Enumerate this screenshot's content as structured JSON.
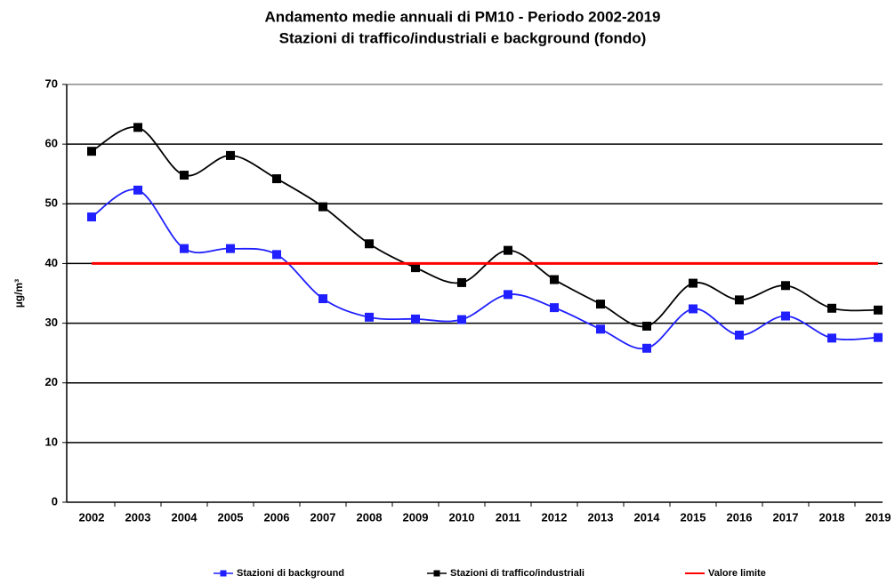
{
  "chart_data": {
    "type": "line",
    "title": "Andamento medie annuali di PM10 - Periodo 2002-2019",
    "subtitle": "Stazioni di traffico/industriali e background (fondo)",
    "y_label": "µg/m³",
    "categories": [
      "2002",
      "2003",
      "2004",
      "2005",
      "2006",
      "2007",
      "2008",
      "2009",
      "2010",
      "2011",
      "2012",
      "2013",
      "2014",
      "2015",
      "2016",
      "2017",
      "2018",
      "2019"
    ],
    "series": [
      {
        "name": "Stazioni di background",
        "color": "#1f1fff",
        "marker": true,
        "values": [
          47.8,
          52.3,
          42.5,
          42.5,
          41.5,
          34.1,
          31.0,
          30.7,
          30.6,
          34.8,
          32.6,
          29.0,
          25.8,
          32.4,
          28.0,
          31.2,
          27.5,
          27.6
        ]
      },
      {
        "name": "Stazioni di traffico/industriali",
        "color": "#000000",
        "marker": true,
        "values": [
          58.8,
          62.8,
          54.8,
          58.1,
          54.2,
          49.5,
          43.3,
          39.3,
          36.8,
          42.2,
          37.3,
          33.2,
          29.5,
          36.7,
          33.9,
          36.3,
          32.5,
          32.2
        ]
      },
      {
        "name": "Valore limite",
        "color": "#ff0000",
        "marker": false,
        "values": [
          40,
          40,
          40,
          40,
          40,
          40,
          40,
          40,
          40,
          40,
          40,
          40,
          40,
          40,
          40,
          40,
          40,
          40
        ]
      }
    ],
    "ylim": [
      0,
      70
    ],
    "yticks": [
      0,
      10,
      20,
      30,
      40,
      50,
      60,
      70
    ],
    "grid": true,
    "smooth": true,
    "legend": "bottom"
  }
}
